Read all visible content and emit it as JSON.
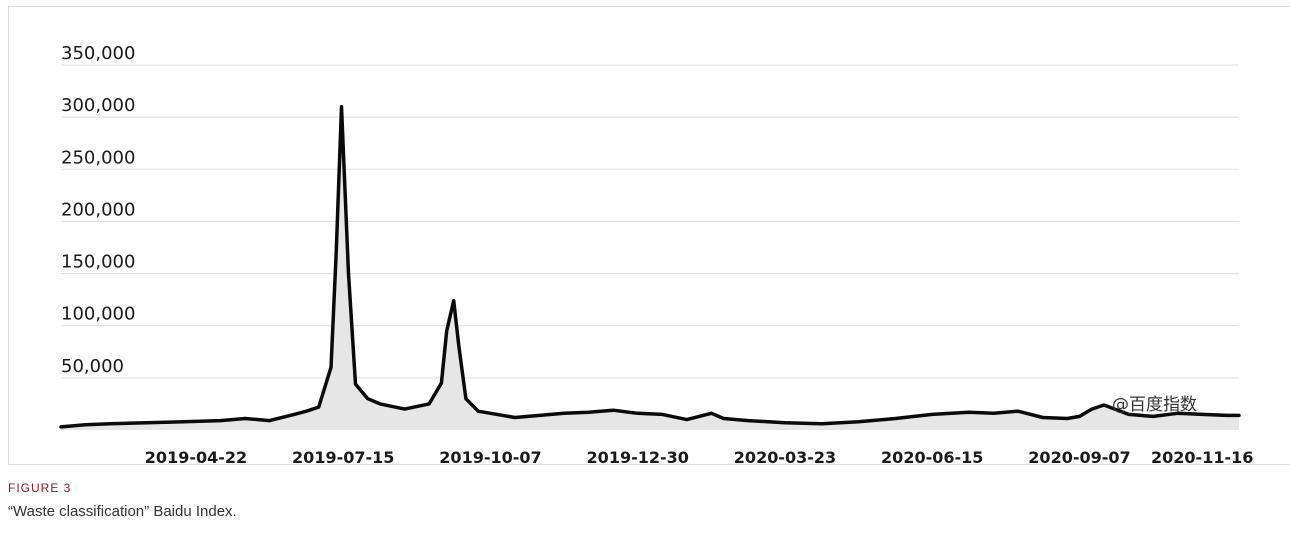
{
  "figure": {
    "label": "FIGURE 3",
    "caption": "“Waste classification” Baidu Index."
  },
  "colors": {
    "line": "#0a0a0a",
    "area": "#e6e6e6",
    "grid": "#dddddd",
    "figure_label": "#8a1c2b"
  },
  "chart_data": {
    "type": "line",
    "title": "",
    "xlabel": "",
    "ylabel": "",
    "watermark": "@百度指数",
    "ylim": [
      0,
      350000
    ],
    "yticks": [
      350000,
      300000,
      250000,
      200000,
      150000,
      100000,
      50000
    ],
    "ytick_labels": [
      "350,000",
      "300,000",
      "250,000",
      "200,000",
      "150,000",
      "100,000",
      "50,000"
    ],
    "xticks": [
      "2019-04-22",
      "2019-07-15",
      "2019-10-07",
      "2019-12-30",
      "2020-03-23",
      "2020-06-15",
      "2020-09-07",
      "2020-11-16"
    ],
    "xlim": [
      "2019-02-04",
      "2020-12-07"
    ],
    "grid": true,
    "series": [
      {
        "x": [
          "2019-02-04",
          "2019-02-18",
          "2019-03-04",
          "2019-03-25",
          "2019-04-15",
          "2019-05-06",
          "2019-05-20",
          "2019-06-03",
          "2019-06-17",
          "2019-06-24",
          "2019-07-01",
          "2019-07-08",
          "2019-07-11",
          "2019-07-14",
          "2019-07-18",
          "2019-07-22",
          "2019-07-29",
          "2019-08-05",
          "2019-08-19",
          "2019-09-02",
          "2019-09-09",
          "2019-09-12",
          "2019-09-16",
          "2019-09-19",
          "2019-09-23",
          "2019-09-30",
          "2019-10-07",
          "2019-10-21",
          "2019-11-04",
          "2019-11-18",
          "2019-12-02",
          "2019-12-16",
          "2019-12-30",
          "2020-01-13",
          "2020-01-27",
          "2020-02-10",
          "2020-02-17",
          "2020-03-02",
          "2020-03-23",
          "2020-04-13",
          "2020-05-04",
          "2020-05-25",
          "2020-06-15",
          "2020-07-06",
          "2020-07-20",
          "2020-08-03",
          "2020-08-17",
          "2020-08-31",
          "2020-09-07",
          "2020-09-14",
          "2020-09-21",
          "2020-10-05",
          "2020-10-19",
          "2020-11-02",
          "2020-11-16",
          "2020-11-30",
          "2020-12-07"
        ],
        "y": [
          3000,
          5000,
          6000,
          7000,
          8000,
          9000,
          11000,
          9000,
          15000,
          18000,
          22000,
          60000,
          170000,
          310000,
          150000,
          44000,
          30000,
          25000,
          20000,
          25000,
          45000,
          95000,
          124000,
          80000,
          30000,
          18000,
          16000,
          12000,
          14000,
          16000,
          17000,
          19000,
          16000,
          15000,
          10000,
          16000,
          11000,
          9000,
          7000,
          6000,
          8000,
          11000,
          15000,
          17000,
          16000,
          18000,
          12000,
          11000,
          13000,
          20000,
          24000,
          15000,
          13000,
          16000,
          15000,
          14000,
          14000
        ]
      }
    ]
  }
}
